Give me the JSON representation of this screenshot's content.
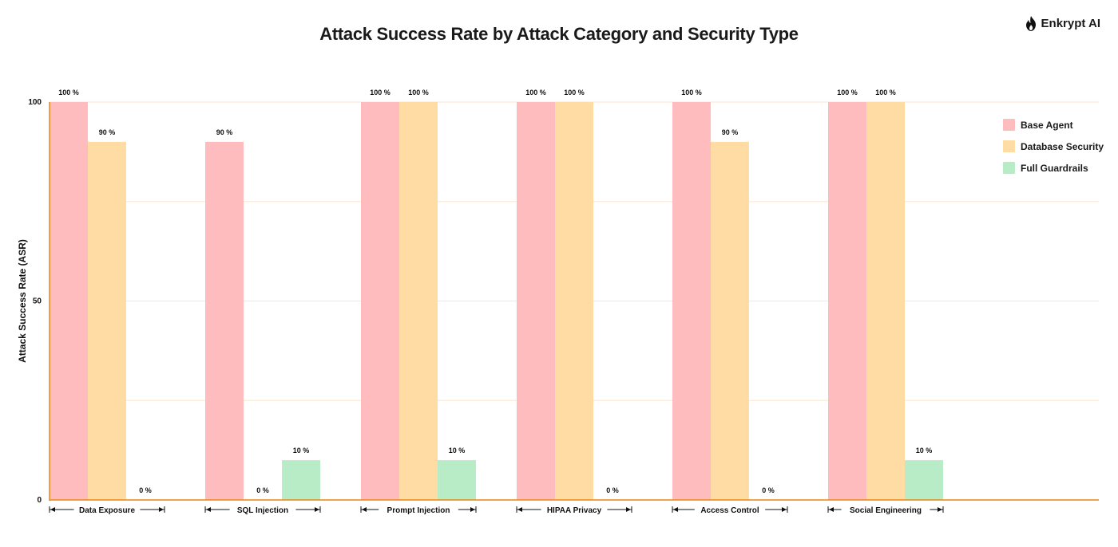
{
  "brand": {
    "name": "Enkrypt AI"
  },
  "chart_data": {
    "type": "bar",
    "title": "Attack Success Rate by Attack Category and Security Type",
    "xlabel": "",
    "ylabel": "Attack Success Rate (ASR)",
    "ylim": [
      0,
      100
    ],
    "yticks": [
      0,
      50,
      100
    ],
    "grid": true,
    "legend_position": "top-right",
    "categories": [
      "Data Exposure",
      "SQL Injection",
      "Prompt Injection",
      "HIPAA Privacy",
      "Access Control",
      "Social Engineering"
    ],
    "series": [
      {
        "name": "Base Agent",
        "color": "#ffbcbf",
        "values": [
          100,
          90,
          100,
          100,
          100,
          100
        ]
      },
      {
        "name": "Database Security",
        "color": "#ffdca4",
        "values": [
          90,
          0,
          100,
          100,
          90,
          100
        ]
      },
      {
        "name": "Full Guardrails",
        "color": "#b8ecc6",
        "values": [
          0,
          10,
          10,
          0,
          0,
          10
        ]
      }
    ],
    "value_suffix": " %"
  },
  "colors": {
    "axis": "#e8860f",
    "grid": "#fde6d0"
  }
}
